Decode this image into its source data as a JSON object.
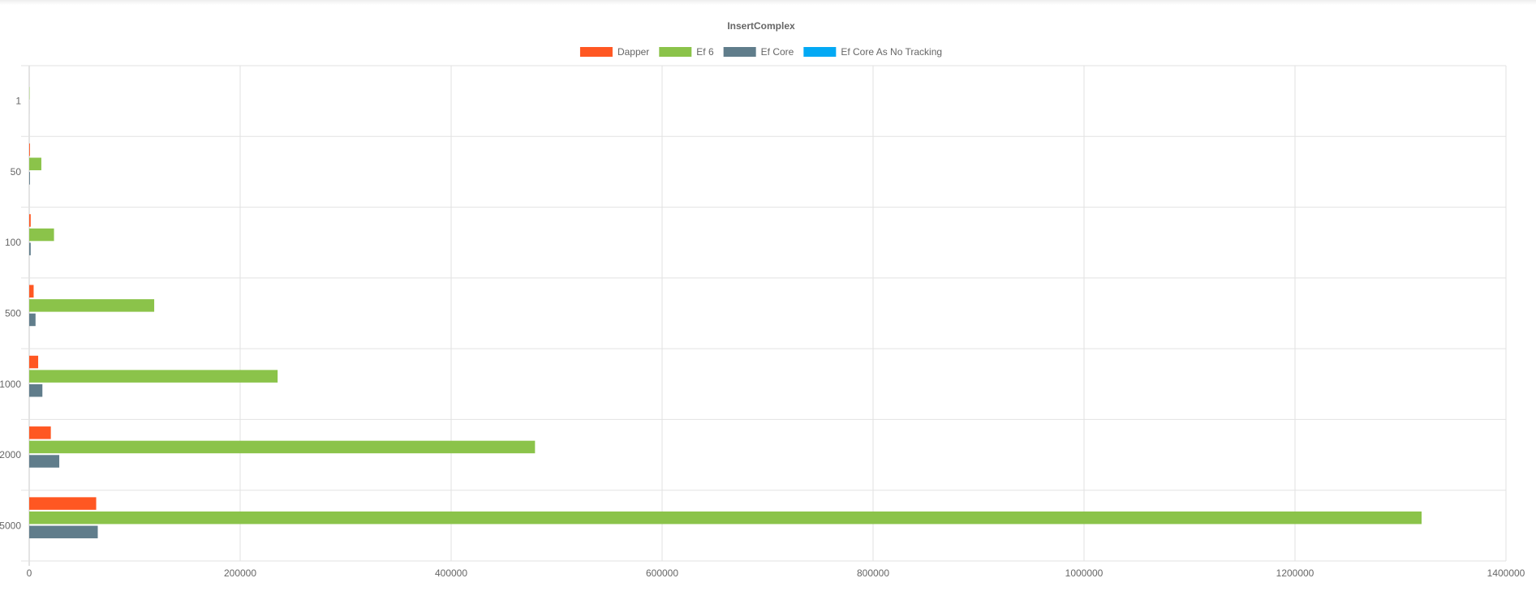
{
  "chart_data": {
    "type": "bar",
    "orientation": "horizontal",
    "title": "InsertComplex",
    "legend_position": "top",
    "grid": true,
    "xlim": [
      0,
      1400000
    ],
    "x_ticks": [
      "0",
      "200000",
      "400000",
      "600000",
      "800000",
      "1000000",
      "1200000",
      "1400000"
    ],
    "categories": [
      "1",
      "50",
      "100",
      "500",
      "1000",
      "2000",
      "5000"
    ],
    "series": [
      {
        "name": "Dapper",
        "color": "#ff5722",
        "values": [
          15,
          700,
          1400,
          4200,
          8500,
          20500,
          63500
        ]
      },
      {
        "name": "Ef 6",
        "color": "#8bc34a",
        "values": [
          300,
          11500,
          23500,
          118500,
          235500,
          479500,
          1320000
        ]
      },
      {
        "name": "Ef Core",
        "color": "#607d8b",
        "values": [
          30,
          700,
          1400,
          6000,
          12500,
          28500,
          65000
        ]
      },
      {
        "name": "Ef Core As No Tracking",
        "color": "#03a9f4",
        "values": [
          0,
          0,
          0,
          0,
          0,
          0,
          0
        ]
      }
    ]
  }
}
